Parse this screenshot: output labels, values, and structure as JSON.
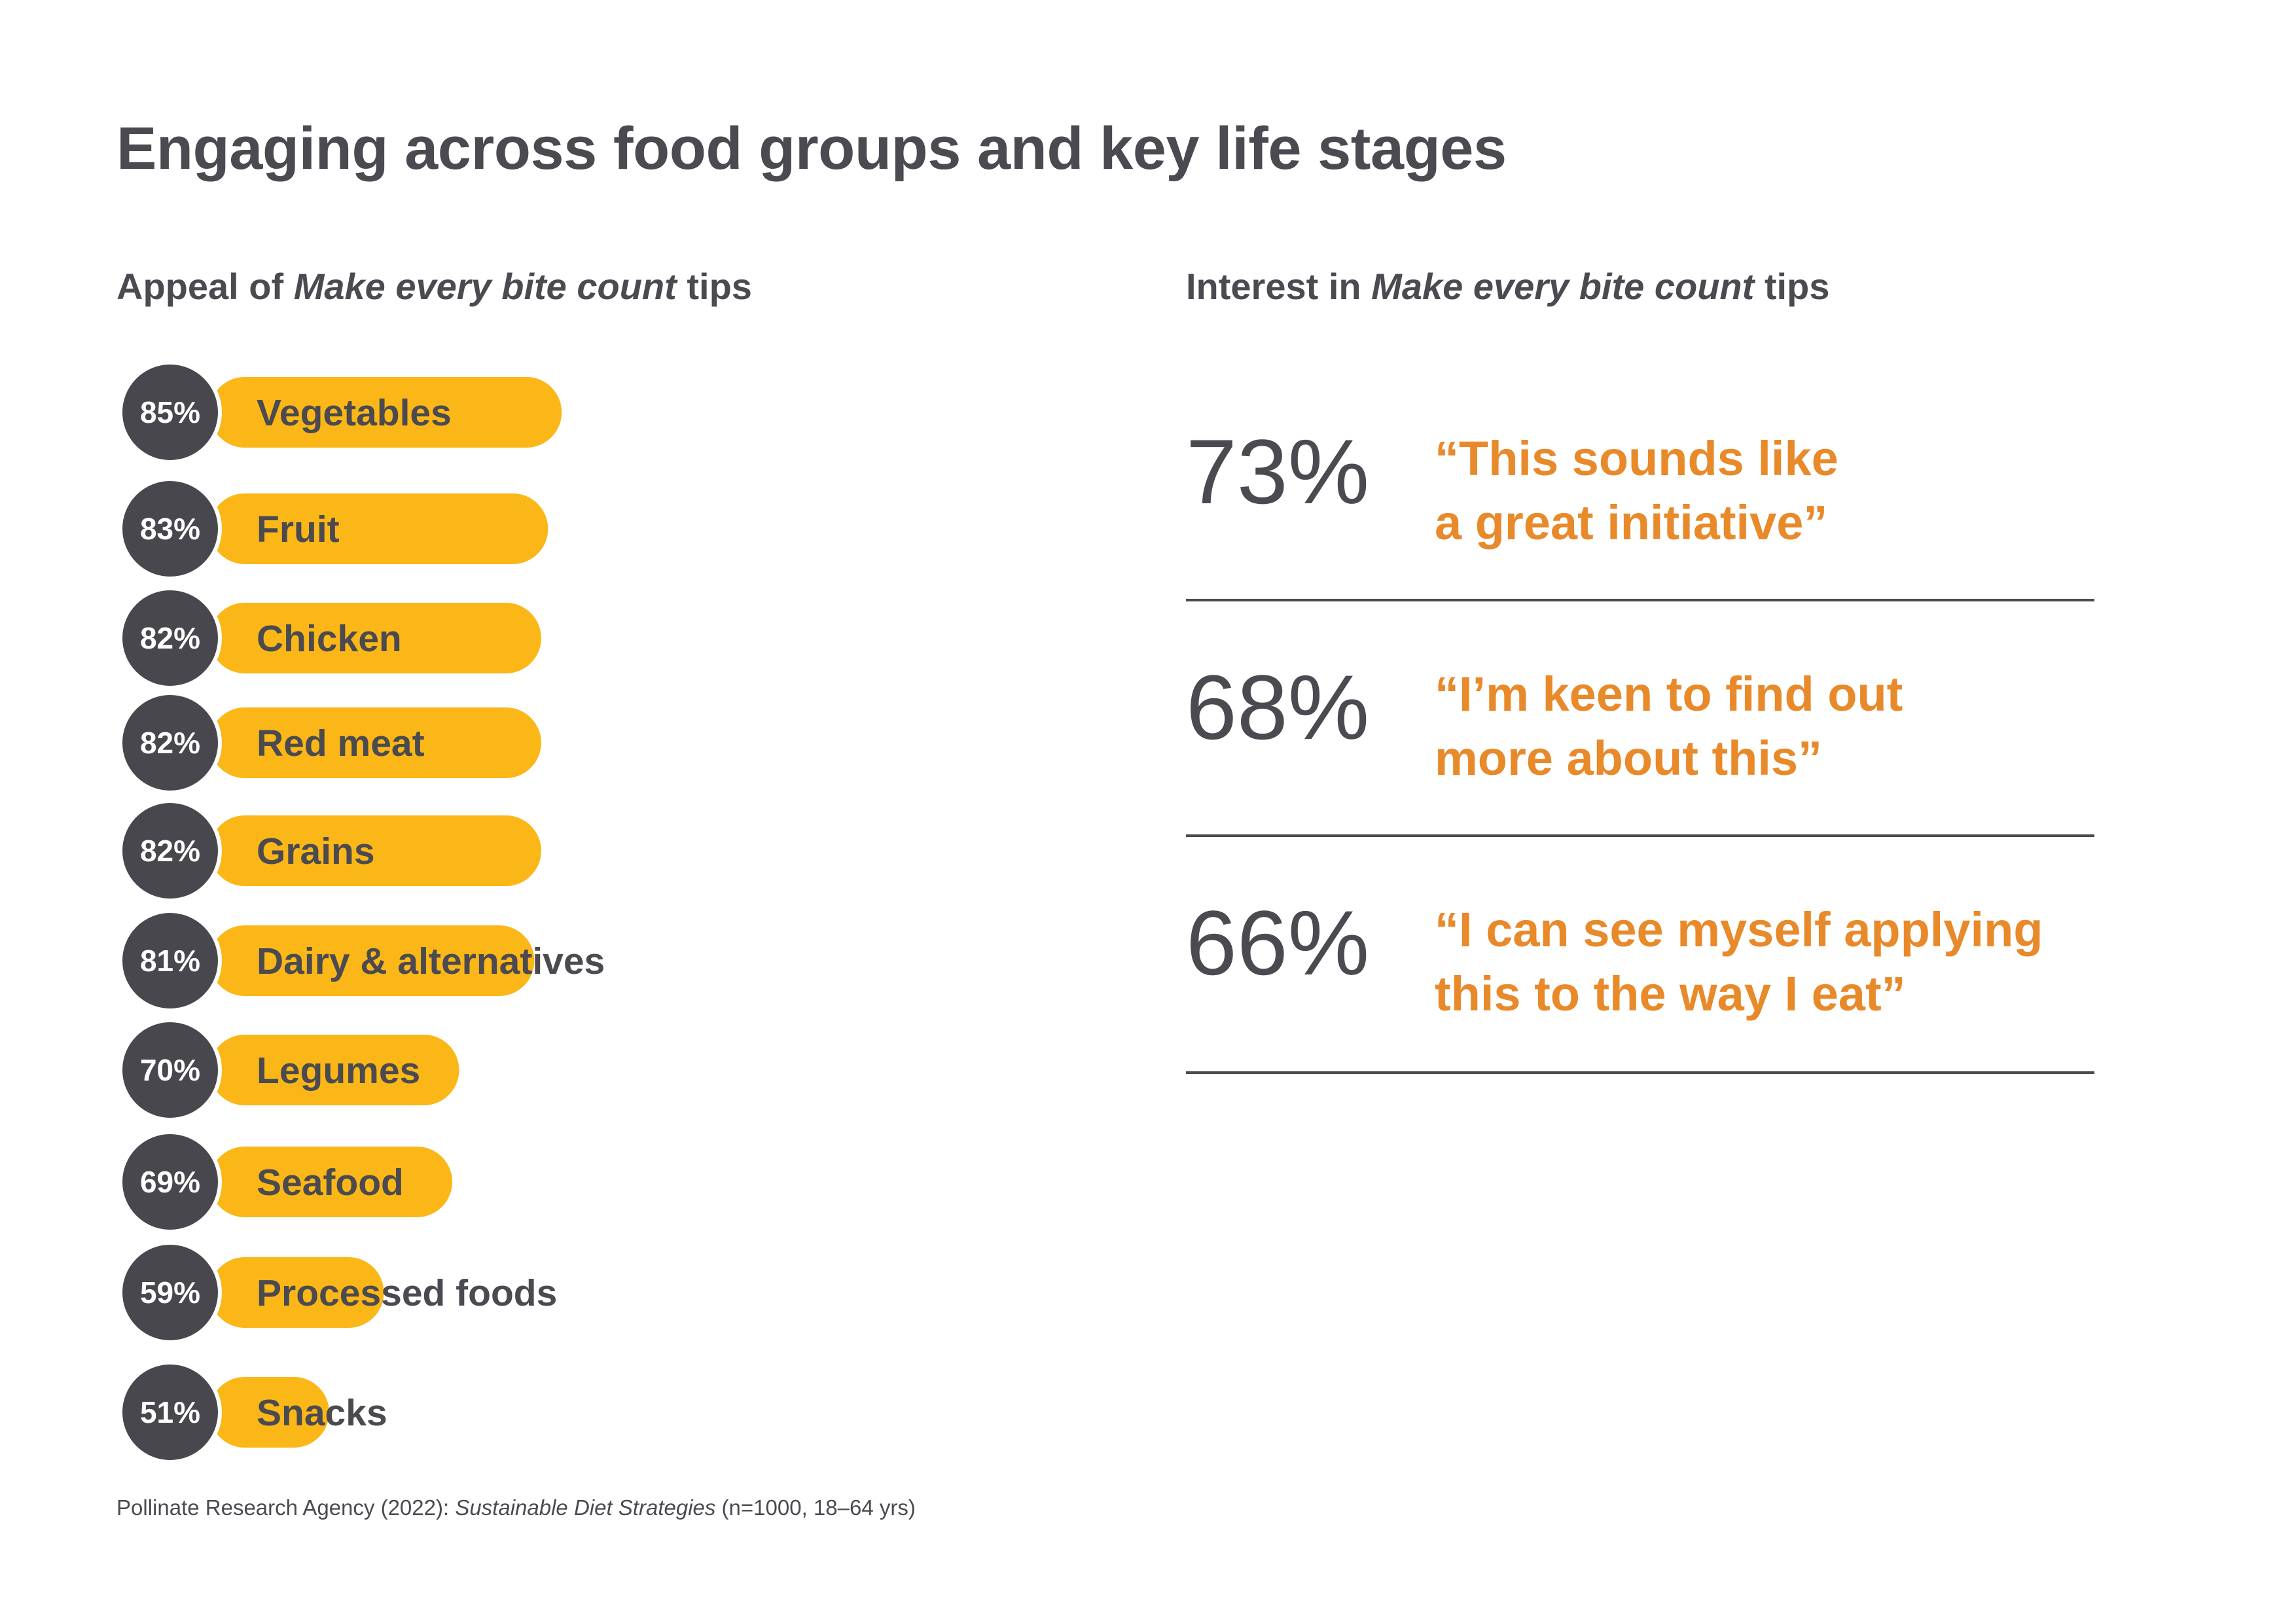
{
  "title": "Engaging across food groups and key life stages",
  "left_subhead": {
    "prefix": "Appeal of ",
    "emphasis": "Make every bite count",
    "suffix": " tips"
  },
  "right_subhead": {
    "prefix": "Interest in ",
    "emphasis": "Make every bite count",
    "suffix": " tips"
  },
  "colors": {
    "bar": "#fbb718",
    "circle": "#47474d",
    "text_dark": "#4a4a50",
    "quote": "#e8892a",
    "divider": "#4a4a50"
  },
  "chart_data": {
    "type": "bar",
    "orientation": "horizontal",
    "categories": [
      "Vegetables",
      "Fruit",
      "Chicken",
      "Red meat",
      "Grains",
      "Dairy & alternatives",
      "Legumes",
      "Seafood",
      "Processed foods",
      "Snacks"
    ],
    "values": [
      85,
      83,
      82,
      82,
      82,
      81,
      70,
      69,
      59,
      51
    ],
    "value_labels": [
      "85%",
      "83%",
      "82%",
      "82%",
      "82%",
      "81%",
      "70%",
      "69%",
      "59%",
      "51%"
    ],
    "unit": "%"
  },
  "interest_stats": [
    {
      "percent": "73%",
      "quote_lines": [
        "“This sounds like",
        "a great initiative”"
      ]
    },
    {
      "percent": "68%",
      "quote_lines": [
        "“I’m keen to find out",
        " more about this”"
      ]
    },
    {
      "percent": "66%",
      "quote_lines": [
        "“I can see myself applying",
        " this to the way I eat”"
      ]
    }
  ],
  "source": {
    "prefix": "Pollinate Research Agency (2022): ",
    "emphasis": "Sustainable Diet Strategies",
    "suffix": " (n=1000, 18–64 yrs)"
  }
}
